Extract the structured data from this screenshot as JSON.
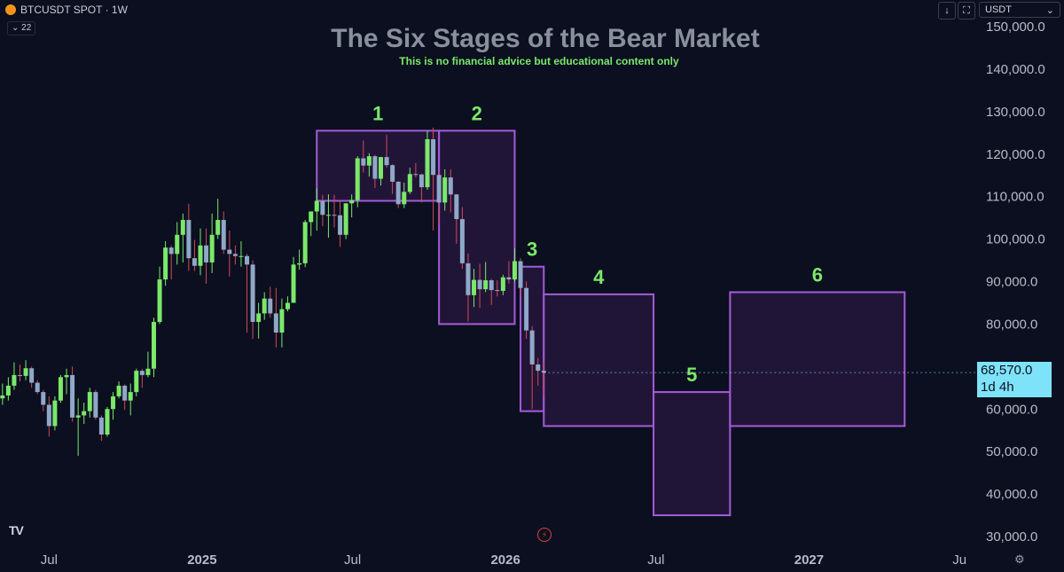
{
  "symbol": {
    "ticker": "BTCUSDT SPOT · 1W",
    "indicator_count": "22"
  },
  "controls": {
    "sort_icon": "arrow-down-icon",
    "fullscreen_icon": "fullscreen-icon",
    "currency": "USDT",
    "currency_chevron": "chevron-down-icon"
  },
  "price_tag": {
    "price": "68,570.0",
    "countdown": "1d 4h",
    "color": "#7ee3f8"
  },
  "colors": {
    "background": "#0b0f1f",
    "up": "#7be86a",
    "down": "#8fa8c8",
    "zone_stroke": "#a45cd8",
    "zone_fill": "#2a1840",
    "title": "#8a8f9c",
    "subtitle": "#7be86a",
    "stage_label": "#7be86a"
  },
  "chart_data": {
    "type": "candlestick",
    "title": "The Six Stages of the Bear Market",
    "subtitle": "This is no financial advice but educational content only",
    "y_axis": {
      "side": "right",
      "ticks": [
        "150,000.0",
        "140,000.0",
        "130,000.0",
        "120,000.0",
        "110,000.0",
        "100,000.0",
        "90,000.0",
        "80,000.0",
        "70,000.0",
        "60,000.0",
        "50,000.0",
        "40,000.0",
        "30,000.0"
      ],
      "tick_values": [
        150000,
        140000,
        130000,
        120000,
        110000,
        100000,
        90000,
        80000,
        70000,
        60000,
        50000,
        40000,
        30000
      ],
      "range": [
        28000,
        153000
      ]
    },
    "x_axis": {
      "labels": [
        "Jul",
        "2025",
        "Jul",
        "2026",
        "Jul",
        "2027",
        "Ju"
      ],
      "label_dates": [
        "2024-07-01",
        "2025-01-01",
        "2025-07-01",
        "2026-01-01",
        "2026-07-01",
        "2027-01-01",
        "2027-07-01"
      ],
      "range": [
        "2024-05-03",
        "2027-07-20"
      ]
    },
    "candles": [
      {
        "date": "2024-05-06",
        "o": 62500,
        "h": 66000,
        "l": 61000,
        "c": 63200
      },
      {
        "date": "2024-05-13",
        "o": 63200,
        "h": 67500,
        "l": 62000,
        "c": 65500
      },
      {
        "date": "2024-05-20",
        "o": 65500,
        "h": 71000,
        "l": 64500,
        "c": 68000
      },
      {
        "date": "2024-05-27",
        "o": 68000,
        "h": 70500,
        "l": 66500,
        "c": 67800
      },
      {
        "date": "2024-06-03",
        "o": 67800,
        "h": 71500,
        "l": 66800,
        "c": 69600
      },
      {
        "date": "2024-06-10",
        "o": 69600,
        "h": 70000,
        "l": 65000,
        "c": 66200
      },
      {
        "date": "2024-06-17",
        "o": 66200,
        "h": 66800,
        "l": 63500,
        "c": 64000
      },
      {
        "date": "2024-06-24",
        "o": 64000,
        "h": 64500,
        "l": 59500,
        "c": 61000
      },
      {
        "date": "2024-07-01",
        "o": 61000,
        "h": 63000,
        "l": 53500,
        "c": 56000
      },
      {
        "date": "2024-07-08",
        "o": 56000,
        "h": 63000,
        "l": 55000,
        "c": 62000
      },
      {
        "date": "2024-07-15",
        "o": 62000,
        "h": 68000,
        "l": 61500,
        "c": 67500
      },
      {
        "date": "2024-07-22",
        "o": 67500,
        "h": 69500,
        "l": 63500,
        "c": 68000
      },
      {
        "date": "2024-07-29",
        "o": 68000,
        "h": 70000,
        "l": 57000,
        "c": 58000
      },
      {
        "date": "2024-08-05",
        "o": 58000,
        "h": 62500,
        "l": 49000,
        "c": 58500
      },
      {
        "date": "2024-08-12",
        "o": 58500,
        "h": 61500,
        "l": 56500,
        "c": 59500
      },
      {
        "date": "2024-08-19",
        "o": 59500,
        "h": 65000,
        "l": 58000,
        "c": 64000
      },
      {
        "date": "2024-08-26",
        "o": 64000,
        "h": 64500,
        "l": 57500,
        "c": 58000
      },
      {
        "date": "2024-09-02",
        "o": 58000,
        "h": 58500,
        "l": 52500,
        "c": 54000
      },
      {
        "date": "2024-09-09",
        "o": 54000,
        "h": 60500,
        "l": 53500,
        "c": 60000
      },
      {
        "date": "2024-09-16",
        "o": 60000,
        "h": 64000,
        "l": 57500,
        "c": 63000
      },
      {
        "date": "2024-09-23",
        "o": 63000,
        "h": 66500,
        "l": 62500,
        "c": 65500
      },
      {
        "date": "2024-09-30",
        "o": 65500,
        "h": 65800,
        "l": 59800,
        "c": 62000
      },
      {
        "date": "2024-10-07",
        "o": 62000,
        "h": 66000,
        "l": 58500,
        "c": 64000
      },
      {
        "date": "2024-10-14",
        "o": 64000,
        "h": 69500,
        "l": 63000,
        "c": 69000
      },
      {
        "date": "2024-10-21",
        "o": 69000,
        "h": 69500,
        "l": 65000,
        "c": 68000
      },
      {
        "date": "2024-10-28",
        "o": 68000,
        "h": 73500,
        "l": 67500,
        "c": 69500
      },
      {
        "date": "2024-11-04",
        "o": 69500,
        "h": 81500,
        "l": 67500,
        "c": 80500
      },
      {
        "date": "2024-11-11",
        "o": 80500,
        "h": 93500,
        "l": 80000,
        "c": 90500
      },
      {
        "date": "2024-11-18",
        "o": 90500,
        "h": 99500,
        "l": 89000,
        "c": 98000
      },
      {
        "date": "2024-11-25",
        "o": 98000,
        "h": 98500,
        "l": 90500,
        "c": 96500
      },
      {
        "date": "2024-12-02",
        "o": 96500,
        "h": 104000,
        "l": 94000,
        "c": 101000
      },
      {
        "date": "2024-12-09",
        "o": 101000,
        "h": 106000,
        "l": 94500,
        "c": 104500
      },
      {
        "date": "2024-12-16",
        "o": 104500,
        "h": 108300,
        "l": 92500,
        "c": 95500
      },
      {
        "date": "2024-12-23",
        "o": 95500,
        "h": 99800,
        "l": 92500,
        "c": 93700
      },
      {
        "date": "2024-12-30",
        "o": 93700,
        "h": 102500,
        "l": 91500,
        "c": 98500
      },
      {
        "date": "2025-01-06",
        "o": 98500,
        "h": 102500,
        "l": 89500,
        "c": 94500
      },
      {
        "date": "2025-01-13",
        "o": 94500,
        "h": 106000,
        "l": 92000,
        "c": 101000
      },
      {
        "date": "2025-01-20",
        "o": 101000,
        "h": 109500,
        "l": 100000,
        "c": 104500
      },
      {
        "date": "2025-01-27",
        "o": 104500,
        "h": 106500,
        "l": 96500,
        "c": 97500
      },
      {
        "date": "2025-02-03",
        "o": 97500,
        "h": 102000,
        "l": 91200,
        "c": 96500
      },
      {
        "date": "2025-02-10",
        "o": 96500,
        "h": 98500,
        "l": 94000,
        "c": 96000
      },
      {
        "date": "2025-02-17",
        "o": 96000,
        "h": 99500,
        "l": 93500,
        "c": 96000
      },
      {
        "date": "2025-02-24",
        "o": 96000,
        "h": 96500,
        "l": 78000,
        "c": 94000
      },
      {
        "date": "2025-03-03",
        "o": 94000,
        "h": 95000,
        "l": 76500,
        "c": 80500
      },
      {
        "date": "2025-03-10",
        "o": 80500,
        "h": 85000,
        "l": 76600,
        "c": 82500
      },
      {
        "date": "2025-03-17",
        "o": 82500,
        "h": 87500,
        "l": 81000,
        "c": 86000
      },
      {
        "date": "2025-03-24",
        "o": 86000,
        "h": 88800,
        "l": 81500,
        "c": 82500
      },
      {
        "date": "2025-03-31",
        "o": 82500,
        "h": 88500,
        "l": 74500,
        "c": 78000
      },
      {
        "date": "2025-04-07",
        "o": 78000,
        "h": 86000,
        "l": 74500,
        "c": 83500
      },
      {
        "date": "2025-04-14",
        "o": 83500,
        "h": 86500,
        "l": 83000,
        "c": 85000
      },
      {
        "date": "2025-04-21",
        "o": 85000,
        "h": 95800,
        "l": 85000,
        "c": 94000
      },
      {
        "date": "2025-04-28",
        "o": 94000,
        "h": 97500,
        "l": 92800,
        "c": 94300
      },
      {
        "date": "2025-05-05",
        "o": 94300,
        "h": 104500,
        "l": 93400,
        "c": 104000
      },
      {
        "date": "2025-05-12",
        "o": 104000,
        "h": 105800,
        "l": 100700,
        "c": 106500
      },
      {
        "date": "2025-05-19",
        "o": 106500,
        "h": 111900,
        "l": 102000,
        "c": 109000
      },
      {
        "date": "2025-05-26",
        "o": 109000,
        "h": 110400,
        "l": 103000,
        "c": 105700
      },
      {
        "date": "2025-06-02",
        "o": 105700,
        "h": 110500,
        "l": 100300,
        "c": 105700
      },
      {
        "date": "2025-06-09",
        "o": 105700,
        "h": 110400,
        "l": 102700,
        "c": 105600
      },
      {
        "date": "2025-06-16",
        "o": 105600,
        "h": 108900,
        "l": 98200,
        "c": 101000
      },
      {
        "date": "2025-06-23",
        "o": 101000,
        "h": 108500,
        "l": 100000,
        "c": 108400
      },
      {
        "date": "2025-06-30",
        "o": 108400,
        "h": 110500,
        "l": 105100,
        "c": 109200
      },
      {
        "date": "2025-07-07",
        "o": 109200,
        "h": 119500,
        "l": 107500,
        "c": 119000
      },
      {
        "date": "2025-07-14",
        "o": 119000,
        "h": 123200,
        "l": 115700,
        "c": 117300
      },
      {
        "date": "2025-07-21",
        "o": 117300,
        "h": 120200,
        "l": 114700,
        "c": 119500
      },
      {
        "date": "2025-07-28",
        "o": 119500,
        "h": 119800,
        "l": 112000,
        "c": 114200
      },
      {
        "date": "2025-08-04",
        "o": 114200,
        "h": 119300,
        "l": 112600,
        "c": 119300
      },
      {
        "date": "2025-08-11",
        "o": 119300,
        "h": 124500,
        "l": 116800,
        "c": 117400
      },
      {
        "date": "2025-08-18",
        "o": 117400,
        "h": 117600,
        "l": 110600,
        "c": 113500
      },
      {
        "date": "2025-08-25",
        "o": 113500,
        "h": 113600,
        "l": 107300,
        "c": 108200
      },
      {
        "date": "2025-09-01",
        "o": 108200,
        "h": 113300,
        "l": 107300,
        "c": 111100
      },
      {
        "date": "2025-09-08",
        "o": 111100,
        "h": 116800,
        "l": 110600,
        "c": 115300
      },
      {
        "date": "2025-09-15",
        "o": 115300,
        "h": 117900,
        "l": 114500,
        "c": 115200
      },
      {
        "date": "2025-09-22",
        "o": 115200,
        "h": 115400,
        "l": 108600,
        "c": 112200
      },
      {
        "date": "2025-09-29",
        "o": 112200,
        "h": 125500,
        "l": 111600,
        "c": 123500
      },
      {
        "date": "2025-10-06",
        "o": 123500,
        "h": 126200,
        "l": 102000,
        "c": 115100
      },
      {
        "date": "2025-10-13",
        "o": 115100,
        "h": 116000,
        "l": 103500,
        "c": 108600
      },
      {
        "date": "2025-10-20",
        "o": 108600,
        "h": 116400,
        "l": 106700,
        "c": 114500
      },
      {
        "date": "2025-10-27",
        "o": 114500,
        "h": 116400,
        "l": 106300,
        "c": 110500
      },
      {
        "date": "2025-11-03",
        "o": 110500,
        "h": 110600,
        "l": 98900,
        "c": 104700
      },
      {
        "date": "2025-11-10",
        "o": 104700,
        "h": 107500,
        "l": 93000,
        "c": 94300
      },
      {
        "date": "2025-11-17",
        "o": 94300,
        "h": 96600,
        "l": 80600,
        "c": 86800
      },
      {
        "date": "2025-11-24",
        "o": 86800,
        "h": 93000,
        "l": 84000,
        "c": 90400
      },
      {
        "date": "2025-12-01",
        "o": 90400,
        "h": 94200,
        "l": 83800,
        "c": 88200
      },
      {
        "date": "2025-12-08",
        "o": 88200,
        "h": 94600,
        "l": 87500,
        "c": 90300
      },
      {
        "date": "2025-12-15",
        "o": 90300,
        "h": 90600,
        "l": 84500,
        "c": 88000
      },
      {
        "date": "2025-12-22",
        "o": 88000,
        "h": 90300,
        "l": 86500,
        "c": 87800
      },
      {
        "date": "2025-12-29",
        "o": 87800,
        "h": 91600,
        "l": 86800,
        "c": 91000
      },
      {
        "date": "2026-01-05",
        "o": 91000,
        "h": 94800,
        "l": 89500,
        "c": 90500
      },
      {
        "date": "2026-01-12",
        "o": 90500,
        "h": 97800,
        "l": 90000,
        "c": 94800
      },
      {
        "date": "2026-01-19",
        "o": 94800,
        "h": 95500,
        "l": 86500,
        "c": 88500
      },
      {
        "date": "2026-01-26",
        "o": 88500,
        "h": 90000,
        "l": 76500,
        "c": 78500
      },
      {
        "date": "2026-02-02",
        "o": 78500,
        "h": 79500,
        "l": 60000,
        "c": 70500
      },
      {
        "date": "2026-02-09",
        "o": 70500,
        "h": 72000,
        "l": 65500,
        "c": 69000
      },
      {
        "date": "2026-02-16",
        "o": 69000,
        "h": 71000,
        "l": 63000,
        "c": 68570
      }
    ],
    "zones": [
      {
        "label": "1",
        "start": "2025-05-19",
        "end": "2025-10-13",
        "top": 125500,
        "bottom": 109000
      },
      {
        "label": "2",
        "start": "2025-10-13",
        "end": "2026-01-12",
        "top": 125500,
        "bottom": 80000
      },
      {
        "label": "3",
        "start": "2026-01-19",
        "end": "2026-02-16",
        "top": 93500,
        "bottom": 59500
      },
      {
        "label": "4",
        "start": "2026-02-16",
        "end": "2026-06-28",
        "top": 87000,
        "bottom": 56000
      },
      {
        "label": "5",
        "start": "2026-06-28",
        "end": "2026-09-28",
        "top": 64000,
        "bottom": 35000
      },
      {
        "label": "6",
        "start": "2026-09-28",
        "end": "2027-04-26",
        "top": 87500,
        "bottom": 56000
      }
    ]
  }
}
